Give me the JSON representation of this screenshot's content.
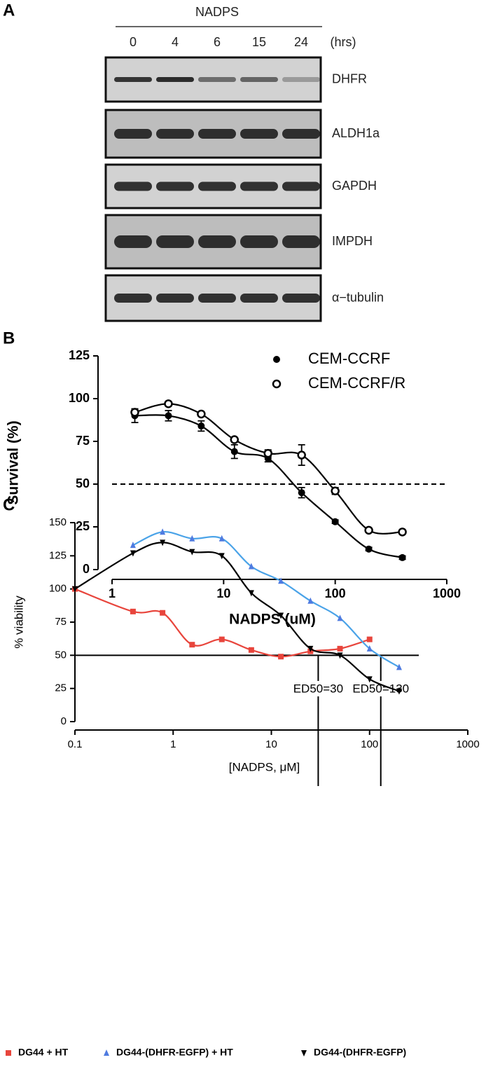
{
  "panel_a": {
    "label": "A",
    "treatment": "NADPS",
    "lanes": [
      "0",
      "4",
      "6",
      "15",
      "24"
    ],
    "unit": "(hrs)",
    "blots": [
      "DHFR",
      "ALDH1a",
      "GAPDH",
      "IMPDH",
      "α−tubulin"
    ]
  },
  "chart_data": [
    {
      "type": "scatter",
      "label": "B",
      "xlabel": "NADPS (uM)",
      "ylabel": "Survival (%)",
      "xscale": "log",
      "xlim": [
        1,
        1000
      ],
      "xticks": [
        1,
        10,
        100,
        1000
      ],
      "ylim": [
        0,
        125
      ],
      "yticks": [
        0,
        25,
        50,
        75,
        100,
        125
      ],
      "reference_line": 50,
      "reference_style": "dashed",
      "legend": "upper right",
      "series": [
        {
          "name": "CEM-CCRF",
          "color": "#000000",
          "marker": "circle-filled",
          "x": [
            1.6,
            3.2,
            6.3,
            12.5,
            25,
            50,
            100,
            200,
            400
          ],
          "values": [
            90,
            90,
            84,
            69,
            65,
            45,
            28,
            12,
            7
          ],
          "errors": [
            4,
            3,
            3,
            4,
            2,
            3,
            1,
            1,
            1
          ]
        },
        {
          "name": "CEM-CCRF/R",
          "color": "#000000",
          "marker": "circle-open",
          "x": [
            1.6,
            3.2,
            6.3,
            12.5,
            25,
            50,
            100,
            200,
            400
          ],
          "values": [
            92,
            97,
            91,
            76,
            68,
            67,
            46,
            23,
            22
          ],
          "errors": [
            2,
            1,
            1,
            1,
            2,
            6,
            2,
            1,
            1
          ]
        }
      ]
    },
    {
      "type": "scatter",
      "label": "C",
      "xlabel": "[NADPS, μM]",
      "ylabel": "% viability",
      "xscale": "log",
      "xlim": [
        0.1,
        1000
      ],
      "xticks": [
        0.1,
        1,
        10,
        100,
        1000
      ],
      "ylim": [
        0,
        150
      ],
      "yticks": [
        0,
        25,
        50,
        75,
        100,
        125,
        150
      ],
      "reference_line": 50,
      "reference_style": "solid",
      "legend": "bottom",
      "annotations": [
        {
          "text": "ED50=30",
          "x": 30
        },
        {
          "text": "ED50=130",
          "x": 130
        }
      ],
      "series": [
        {
          "name": "DG44 + HT",
          "color": "#e8453c",
          "marker": "square",
          "x": [
            0.1,
            0.39,
            0.78,
            1.56,
            3.13,
            6.25,
            12.5,
            25,
            50,
            100
          ],
          "values": [
            100,
            83,
            82,
            58,
            62,
            54,
            49,
            53,
            55,
            62
          ]
        },
        {
          "name": "DG44-(DHFR-EGFP) + HT",
          "color": "#4f7be0",
          "line_color": "#4aa3e8",
          "marker": "triangle-up",
          "x": [
            0.39,
            0.78,
            1.56,
            3.13,
            6.25,
            12.5,
            25,
            50,
            100,
            200
          ],
          "values": [
            133,
            143,
            138,
            138,
            117,
            106,
            91,
            78,
            55,
            41
          ]
        },
        {
          "name": "DG44-(DHFR-EGFP)",
          "color": "#000000",
          "marker": "triangle-down",
          "x": [
            0.1,
            0.39,
            0.78,
            1.56,
            3.13,
            6.25,
            12.5,
            25,
            50,
            100,
            200
          ],
          "values": [
            100,
            127,
            135,
            128,
            125,
            97,
            80,
            55,
            50,
            32,
            23
          ]
        }
      ]
    }
  ]
}
